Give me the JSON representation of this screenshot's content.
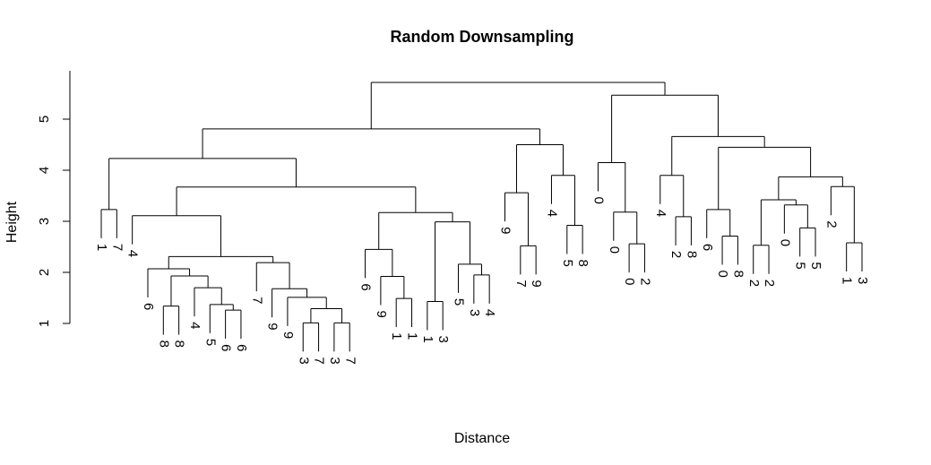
{
  "chart_data": {
    "type": "dendrogram",
    "title": "Random Downsampling",
    "xlabel": "Distance",
    "ylabel": "Height",
    "ylim": [
      0.8,
      5.8
    ],
    "yticks": [
      1,
      2,
      3,
      4,
      5
    ],
    "tree": {
      "h": 5.72,
      "c": [
        {
          "h": 4.81,
          "c": [
            {
              "h": 4.23,
              "c": [
                {
                  "h": 3.23,
                  "c": [
                    {
                      "l": "1"
                    },
                    {
                      "l": "7"
                    }
                  ]
                },
                {
                  "h": 3.67,
                  "c": [
                    {
                      "h": 3.11,
                      "c": [
                        {
                          "l": "4"
                        },
                        {
                          "h": 2.31,
                          "c": [
                            {
                              "h": 2.07,
                              "c": [
                                {
                                  "l": "6"
                                },
                                {
                                  "h": 1.93,
                                  "c": [
                                    {
                                      "h": 1.34,
                                      "c": [
                                        {
                                          "l": "8"
                                        },
                                        {
                                          "l": "8"
                                        }
                                      ]
                                    },
                                    {
                                      "h": 1.7,
                                      "c": [
                                        {
                                          "l": "4"
                                        },
                                        {
                                          "h": 1.37,
                                          "c": [
                                            {
                                              "l": "5"
                                            },
                                            {
                                              "h": 1.26,
                                              "c": [
                                                {
                                                  "l": "6"
                                                },
                                                {
                                                  "l": "6"
                                                }
                                              ]
                                            }
                                          ]
                                        }
                                      ]
                                    }
                                  ]
                                }
                              ]
                            },
                            {
                              "h": 2.19,
                              "c": [
                                {
                                  "l": "7"
                                },
                                {
                                  "h": 1.68,
                                  "c": [
                                    {
                                      "l": "9"
                                    },
                                    {
                                      "h": 1.51,
                                      "c": [
                                        {
                                          "l": "9"
                                        },
                                        {
                                          "h": 1.29,
                                          "c": [
                                            {
                                              "h": 1.01,
                                              "c": [
                                                {
                                                  "l": "3"
                                                },
                                                {
                                                  "l": "7"
                                                }
                                              ]
                                            },
                                            {
                                              "h": 1.01,
                                              "c": [
                                                {
                                                  "l": "3"
                                                },
                                                {
                                                  "l": "7"
                                                }
                                              ]
                                            }
                                          ]
                                        }
                                      ]
                                    }
                                  ]
                                }
                              ]
                            }
                          ]
                        }
                      ]
                    },
                    {
                      "h": 3.17,
                      "c": [
                        {
                          "h": 2.45,
                          "c": [
                            {
                              "l": "6"
                            },
                            {
                              "h": 1.92,
                              "c": [
                                {
                                  "l": "9"
                                },
                                {
                                  "h": 1.49,
                                  "c": [
                                    {
                                      "l": "1"
                                    },
                                    {
                                      "l": "1"
                                    }
                                  ]
                                }
                              ]
                            }
                          ]
                        },
                        {
                          "h": 2.99,
                          "c": [
                            {
                              "h": 1.43,
                              "c": [
                                {
                                  "l": "1"
                                },
                                {
                                  "l": "3"
                                }
                              ]
                            },
                            {
                              "h": 2.16,
                              "c": [
                                {
                                  "l": "5"
                                },
                                {
                                  "h": 1.95,
                                  "c": [
                                    {
                                      "l": "3"
                                    },
                                    {
                                      "l": "4"
                                    }
                                  ]
                                }
                              ]
                            }
                          ]
                        }
                      ]
                    }
                  ]
                }
              ]
            },
            {
              "h": 4.5,
              "c": [
                {
                  "h": 3.56,
                  "c": [
                    {
                      "l": "9"
                    },
                    {
                      "h": 2.52,
                      "c": [
                        {
                          "l": "7"
                        },
                        {
                          "l": "9"
                        }
                      ]
                    }
                  ]
                },
                {
                  "h": 3.9,
                  "c": [
                    {
                      "l": "4"
                    },
                    {
                      "h": 2.92,
                      "c": [
                        {
                          "l": "5"
                        },
                        {
                          "l": "8"
                        }
                      ]
                    }
                  ]
                }
              ]
            }
          ]
        },
        {
          "h": 5.47,
          "c": [
            {
              "h": 4.15,
              "c": [
                {
                  "l": "0"
                },
                {
                  "h": 3.18,
                  "c": [
                    {
                      "l": "0"
                    },
                    {
                      "h": 2.56,
                      "c": [
                        {
                          "l": "0"
                        },
                        {
                          "l": "2"
                        }
                      ]
                    }
                  ]
                }
              ]
            },
            {
              "h": 4.66,
              "c": [
                {
                  "h": 3.9,
                  "c": [
                    {
                      "l": "4"
                    },
                    {
                      "h": 3.09,
                      "c": [
                        {
                          "l": "2"
                        },
                        {
                          "l": "8"
                        }
                      ]
                    }
                  ]
                },
                {
                  "h": 4.45,
                  "c": [
                    {
                      "h": 3.23,
                      "c": [
                        {
                          "l": "6"
                        },
                        {
                          "h": 2.71,
                          "c": [
                            {
                              "l": "0"
                            },
                            {
                              "l": "8"
                            }
                          ]
                        }
                      ]
                    },
                    {
                      "h": 3.87,
                      "c": [
                        {
                          "h": 3.42,
                          "c": [
                            {
                              "h": 2.53,
                              "c": [
                                {
                                  "l": "2"
                                },
                                {
                                  "l": "2"
                                }
                              ]
                            },
                            {
                              "h": 3.32,
                              "c": [
                                {
                                  "l": "0"
                                },
                                {
                                  "h": 2.87,
                                  "c": [
                                    {
                                      "l": "5"
                                    },
                                    {
                                      "l": "5"
                                    }
                                  ]
                                }
                              ]
                            }
                          ]
                        },
                        {
                          "h": 3.68,
                          "c": [
                            {
                              "l": "2"
                            },
                            {
                              "h": 2.58,
                              "c": [
                                {
                                  "l": "1"
                                },
                                {
                                  "l": "3"
                                }
                              ]
                            }
                          ]
                        }
                      ]
                    }
                  ]
                }
              ]
            }
          ]
        }
      ]
    }
  }
}
